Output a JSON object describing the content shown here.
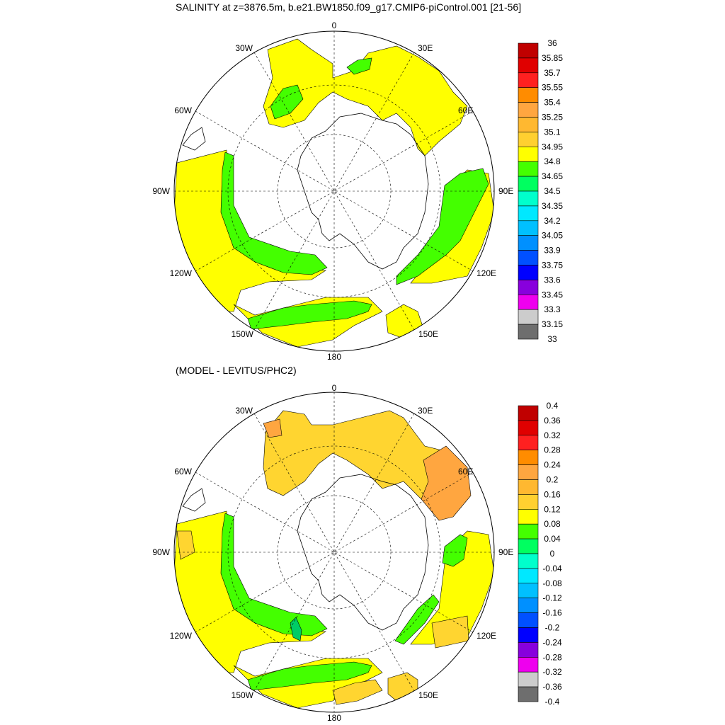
{
  "panels": [
    {
      "title": "SALINITY at z=3876.5m, b.e21.BW1850.f09_g17.CMIP6-piControl.001 [21-56]",
      "lon_labels": {
        "n": "0",
        "e30": "30E",
        "e60": "60E",
        "e90": "90E",
        "e120": "120E",
        "e150": "150E",
        "s": "180",
        "w150": "150W",
        "w120": "120W",
        "w90": "90W",
        "w60": "60W",
        "w30": "30W"
      },
      "colorbar_labels": [
        "36",
        "35.85",
        "35.7",
        "35.55",
        "35.4",
        "35.25",
        "35.1",
        "34.95",
        "34.8",
        "34.65",
        "34.5",
        "34.35",
        "34.2",
        "34.05",
        "33.9",
        "33.75",
        "33.6",
        "33.45",
        "33.3",
        "33.15",
        "33"
      ],
      "colorbar_colors": [
        "#c00000",
        "#e00000",
        "#ff2020",
        "#ff8c00",
        "#ffa640",
        "#ffb830",
        "#ffd030",
        "#ffff00",
        "#44ff00",
        "#00ff60",
        "#00ffcc",
        "#00e8ff",
        "#00c0ff",
        "#0090ff",
        "#0050ff",
        "#0000ff",
        "#8800dd",
        "#ee00ee",
        "#cccccc",
        "#6e6e6e"
      ]
    },
    {
      "title": "(MODEL - LEVITUS/PHC2)",
      "lon_labels": {
        "n": "0",
        "e30": "30E",
        "e60": "60E",
        "e90": "90E",
        "e120": "120E",
        "e150": "150E",
        "s": "180",
        "w150": "150W",
        "w120": "120W",
        "w90": "90W",
        "w60": "60W",
        "w30": "30W"
      },
      "colorbar_labels": [
        "0.4",
        "0.36",
        "0.32",
        "0.28",
        "0.24",
        "0.2",
        "0.16",
        "0.12",
        "0.08",
        "0.04",
        "0",
        "-0.04",
        "-0.08",
        "-0.12",
        "-0.16",
        "-0.2",
        "-0.24",
        "-0.28",
        "-0.32",
        "-0.36",
        "-0.4"
      ],
      "colorbar_colors": [
        "#c00000",
        "#e00000",
        "#ff2020",
        "#ff8c00",
        "#ffa640",
        "#ffb830",
        "#ffd030",
        "#ffff00",
        "#44ff00",
        "#00ff60",
        "#00ffcc",
        "#00e8ff",
        "#00c0ff",
        "#0090ff",
        "#0050ff",
        "#0000ff",
        "#8800dd",
        "#ee00ee",
        "#cccccc",
        "#6e6e6e"
      ]
    }
  ],
  "fills": {
    "yellow": "#ffff00",
    "green": "#44ff00",
    "gold": "#ffd530",
    "orange": "#ffa640",
    "teal": "#00cc66"
  }
}
